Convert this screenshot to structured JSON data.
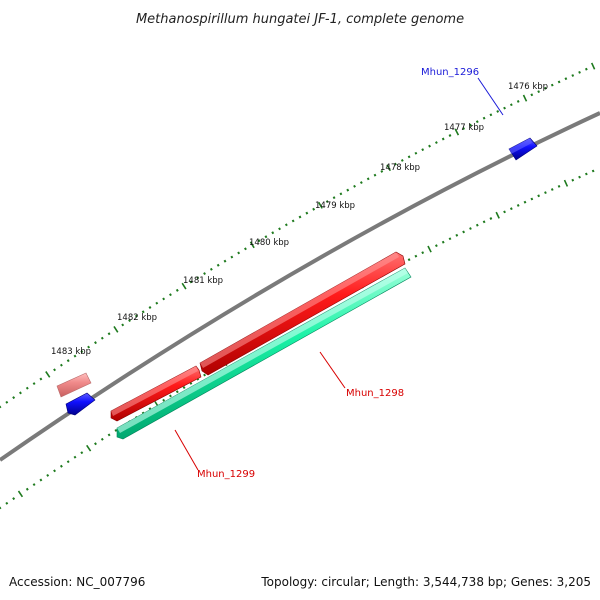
{
  "title": "Methanospirillum hungatei JF-1, complete genome",
  "footer": {
    "accession": "Accession: NC_007796",
    "summary": "Topology: circular; Length: 3,544,738 bp; Genes: 3,205"
  },
  "ticks": [
    "1476 kbp",
    "1477 kbp",
    "1478 kbp",
    "1479 kbp",
    "1480 kbp",
    "1481 kbp",
    "1482 kbp",
    "1483 kbp"
  ],
  "genes": [
    {
      "name": "Mhun_1296",
      "color": "#1a1ad8"
    },
    {
      "name": "Mhun_1298",
      "color": "#d80000"
    },
    {
      "name": "Mhun_1299",
      "color": "#d80000"
    }
  ],
  "colors": {
    "backbone": "#7a7a7a",
    "tick": "#1e7a1e",
    "forward_feature": "#ff0000",
    "reverse_feature": "#00e69a",
    "blue_feature": "#0000e6",
    "faded_feature": "#f08a8a"
  }
}
